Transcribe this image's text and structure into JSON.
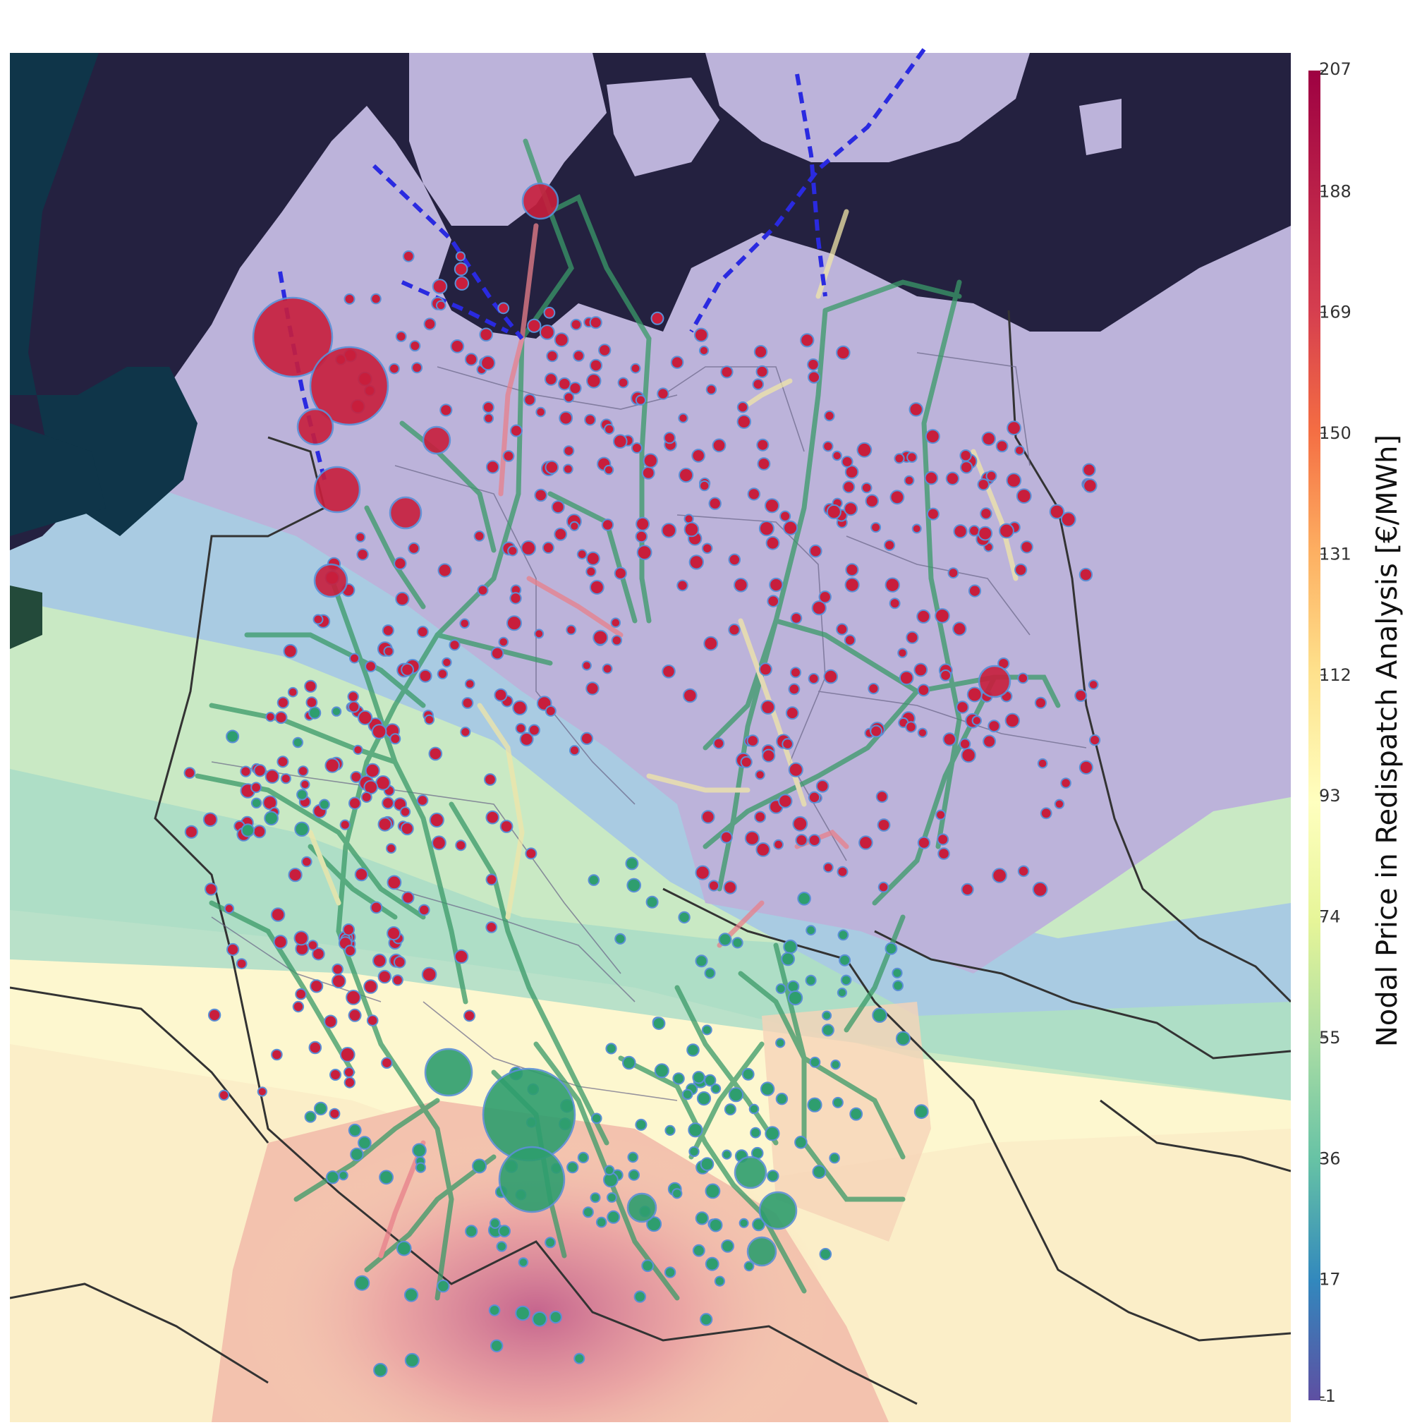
{
  "colorbar": {
    "title": "Nodal Price in Redispatch Analysis [€/MWh]",
    "ticks": [
      "207",
      "188",
      "169",
      "150",
      "131",
      "112",
      "93",
      "74",
      "55",
      "36",
      "17",
      "-1"
    ],
    "colors": [
      "#9e0142",
      "#d53e4f",
      "#f46d43",
      "#fdae61",
      "#fee08b",
      "#ffffbf",
      "#e6f598",
      "#abdda4",
      "#66c2a5",
      "#3288bd",
      "#5e4fa2"
    ]
  },
  "colors": {
    "sea": "#242140",
    "high_price_node": "#c81e3c",
    "low_price_node": "#2e9e6e",
    "node_outline": "#5b8fd6",
    "hvdc_line": "#2a2ae0",
    "north_region": "#bcb3da",
    "south_region": "#f5c6b0"
  }
}
